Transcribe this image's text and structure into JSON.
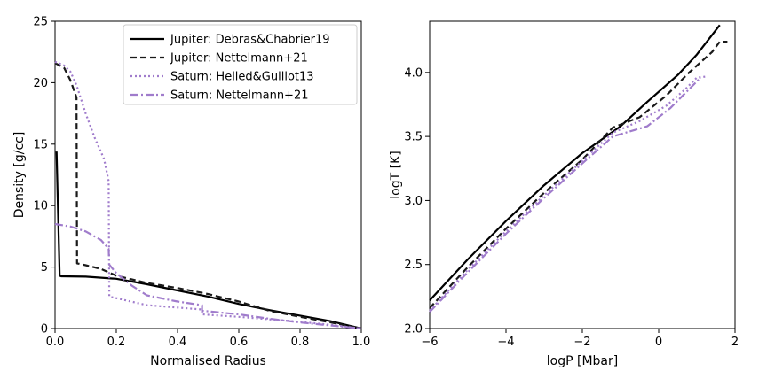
{
  "chart_data": [
    {
      "type": "line",
      "xlabel": "Normalised Radius",
      "ylabel": "Density [g/cc]",
      "xlim": [
        0.0,
        1.0
      ],
      "ylim": [
        0,
        25
      ],
      "xticks": [
        "0.0",
        "0.2",
        "0.4",
        "0.6",
        "0.8",
        "1.0"
      ],
      "yticks": [
        "0",
        "5",
        "10",
        "15",
        "20",
        "25"
      ],
      "grid": false,
      "legend_position": "top-right",
      "series": [
        {
          "name": "Jupiter: Debras&Chabrier19",
          "color": "#000000",
          "style": "solid",
          "points": [
            [
              0.005,
              14.4
            ],
            [
              0.015,
              4.3
            ],
            [
              0.02,
              4.25
            ],
            [
              0.1,
              4.22
            ],
            [
              0.2,
              4.05
            ],
            [
              0.3,
              3.6
            ],
            [
              0.4,
              3.1
            ],
            [
              0.5,
              2.6
            ],
            [
              0.6,
              2.0
            ],
            [
              0.7,
              1.5
            ],
            [
              0.8,
              1.05
            ],
            [
              0.9,
              0.6
            ],
            [
              1.0,
              0.0
            ]
          ]
        },
        {
          "name": "Jupiter: Nettelmann+21",
          "color": "#1a1a1a",
          "style": "dashed",
          "points": [
            [
              0.0,
              21.6
            ],
            [
              0.03,
              21.2
            ],
            [
              0.05,
              20.2
            ],
            [
              0.07,
              18.8
            ],
            [
              0.072,
              5.3
            ],
            [
              0.1,
              5.15
            ],
            [
              0.15,
              4.85
            ],
            [
              0.2,
              4.3
            ],
            [
              0.3,
              3.7
            ],
            [
              0.4,
              3.3
            ],
            [
              0.5,
              2.8
            ],
            [
              0.6,
              2.2
            ],
            [
              0.7,
              1.45
            ],
            [
              0.8,
              0.95
            ],
            [
              0.9,
              0.5
            ],
            [
              1.0,
              0.0
            ]
          ]
        },
        {
          "name": "Saturn: Helled&Guillot13",
          "color": "#a07ccc",
          "style": "dotted",
          "points": [
            [
              0.0,
              21.7
            ],
            [
              0.03,
              21.4
            ],
            [
              0.05,
              20.9
            ],
            [
              0.07,
              19.8
            ],
            [
              0.1,
              17.5
            ],
            [
              0.13,
              15.5
            ],
            [
              0.16,
              13.8
            ],
            [
              0.175,
              12.0
            ],
            [
              0.177,
              2.6
            ],
            [
              0.3,
              1.9
            ],
            [
              0.48,
              1.55
            ],
            [
              0.48,
              1.15
            ],
            [
              0.6,
              0.95
            ],
            [
              0.7,
              0.75
            ],
            [
              0.8,
              0.55
            ],
            [
              0.9,
              0.3
            ],
            [
              1.0,
              0.0
            ]
          ]
        },
        {
          "name": "Saturn: Nettelmann+21",
          "color": "#a07ccc",
          "style": "dashdot",
          "points": [
            [
              0.0,
              8.5
            ],
            [
              0.05,
              8.3
            ],
            [
              0.1,
              7.9
            ],
            [
              0.15,
              7.2
            ],
            [
              0.175,
              6.5
            ],
            [
              0.177,
              5.2
            ],
            [
              0.2,
              4.5
            ],
            [
              0.25,
              3.5
            ],
            [
              0.3,
              2.7
            ],
            [
              0.4,
              2.2
            ],
            [
              0.48,
              1.9
            ],
            [
              0.48,
              1.45
            ],
            [
              0.6,
              1.15
            ],
            [
              0.7,
              0.8
            ],
            [
              0.8,
              0.5
            ],
            [
              0.9,
              0.25
            ],
            [
              1.0,
              0.0
            ]
          ]
        }
      ]
    },
    {
      "type": "line",
      "xlabel": "logP [Mbar]",
      "ylabel": "logT [K]",
      "xlim": [
        -6,
        2
      ],
      "ylim": [
        2.0,
        4.4
      ],
      "xticks": [
        "−6",
        "−4",
        "−2",
        "0",
        "2"
      ],
      "yticks": [
        "2.0",
        "2.5",
        "3.0",
        "3.5",
        "4.0"
      ],
      "grid": false,
      "series": [
        {
          "color": "#000000",
          "style": "solid",
          "points": [
            [
              -6,
              2.22
            ],
            [
              -5,
              2.54
            ],
            [
              -4,
              2.84
            ],
            [
              -3,
              3.12
            ],
            [
              -2,
              3.37
            ],
            [
              -1,
              3.58
            ],
            [
              -0.3,
              3.77
            ],
            [
              0.5,
              3.98
            ],
            [
              1.0,
              4.14
            ],
            [
              1.6,
              4.37
            ]
          ]
        },
        {
          "color": "#1a1a1a",
          "style": "dashed",
          "points": [
            [
              -6,
              2.16
            ],
            [
              -5,
              2.48
            ],
            [
              -4,
              2.78
            ],
            [
              -3,
              3.06
            ],
            [
              -2,
              3.32
            ],
            [
              -1.2,
              3.57
            ],
            [
              -0.5,
              3.65
            ],
            [
              0.2,
              3.82
            ],
            [
              0.8,
              4.0
            ],
            [
              1.4,
              4.16
            ],
            [
              1.6,
              4.24
            ],
            [
              1.8,
              4.24
            ]
          ]
        },
        {
          "color": "#a07ccc",
          "style": "dotted",
          "points": [
            [
              -6,
              2.14
            ],
            [
              -5,
              2.46
            ],
            [
              -4,
              2.76
            ],
            [
              -3,
              3.04
            ],
            [
              -2,
              3.31
            ],
            [
              -1.2,
              3.53
            ],
            [
              -0.5,
              3.62
            ],
            [
              0.2,
              3.74
            ],
            [
              0.7,
              3.87
            ],
            [
              1.0,
              3.96
            ],
            [
              1.3,
              3.97
            ]
          ]
        },
        {
          "color": "#a07ccc",
          "style": "dashdot",
          "points": [
            [
              -6,
              2.13
            ],
            [
              -5,
              2.44
            ],
            [
              -4,
              2.74
            ],
            [
              -3,
              3.02
            ],
            [
              -2,
              3.29
            ],
            [
              -1.2,
              3.5
            ],
            [
              -0.3,
              3.58
            ],
            [
              0.3,
              3.72
            ],
            [
              0.8,
              3.87
            ],
            [
              1.1,
              3.96
            ]
          ]
        }
      ]
    }
  ]
}
